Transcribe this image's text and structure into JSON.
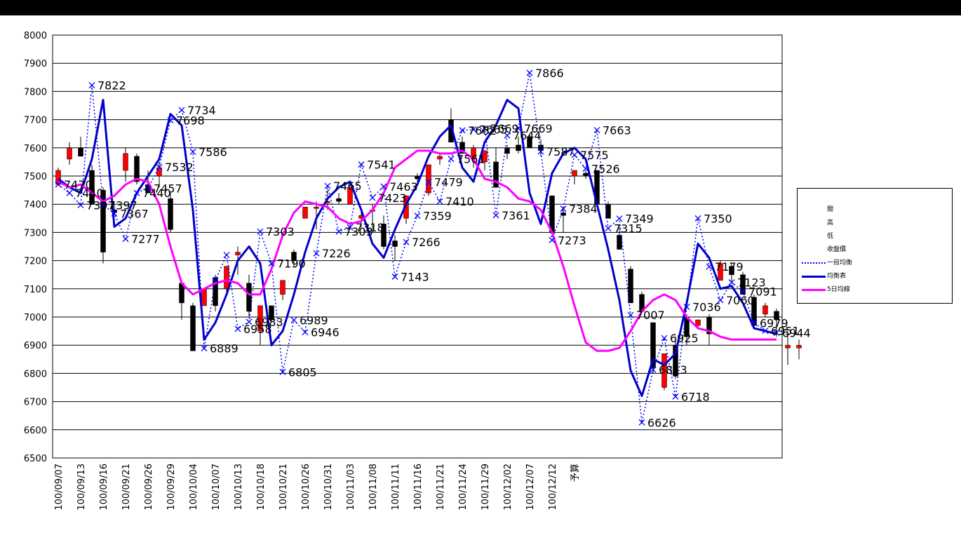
{
  "chart_data": {
    "type": "line",
    "ylim": [
      6500,
      8000
    ],
    "yticks": [
      6500,
      6600,
      6700,
      6800,
      6900,
      7000,
      7100,
      7200,
      7300,
      7400,
      7500,
      7600,
      7700,
      7800,
      7900,
      8000
    ],
    "x_labels": [
      "100/09/07",
      "100/09/13",
      "100/09/16",
      "100/09/21",
      "100/09/26",
      "100/09/29",
      "100/10/04",
      "100/10/07",
      "100/10/13",
      "100/10/18",
      "100/10/21",
      "100/10/26",
      "100/10/31",
      "100/11/03",
      "100/11/08",
      "100/11/11",
      "100/11/16",
      "100/11/21",
      "100/11/24",
      "100/11/29",
      "100/12/02",
      "100/12/07",
      "100/12/12",
      "予算"
    ],
    "x_label_index": [
      0,
      2,
      4,
      6,
      8,
      10,
      12,
      14,
      16,
      18,
      20,
      22,
      24,
      26,
      28,
      30,
      32,
      34,
      36,
      38,
      40,
      42,
      44,
      46
    ],
    "candles": [
      [
        7470,
        7530,
        7480,
        7520
      ],
      [
        7560,
        7620,
        7540,
        7600
      ],
      [
        7600,
        7640,
        7570,
        7570
      ],
      [
        7520,
        7540,
        7400,
        7400
      ],
      [
        7450,
        7460,
        7190,
        7230
      ],
      [
        7380,
        7400,
        7360,
        7370
      ],
      [
        7520,
        7600,
        7480,
        7580
      ],
      [
        7570,
        7580,
        7470,
        7480
      ],
      [
        7470,
        7520,
        7440,
        7440
      ],
      [
        7500,
        7550,
        7460,
        7530
      ],
      [
        7420,
        7440,
        7300,
        7310
      ],
      [
        7120,
        7120,
        6990,
        7050
      ],
      [
        7040,
        7050,
        6880,
        6880
      ],
      [
        7040,
        7100,
        7040,
        7100
      ],
      [
        7140,
        7150,
        7020,
        7040
      ],
      [
        7100,
        7180,
        7080,
        7180
      ],
      [
        7220,
        7250,
        7150,
        7230
      ],
      [
        7120,
        7150,
        7000,
        7020
      ],
      [
        6950,
        7040,
        6900,
        7040
      ],
      [
        7040,
        7040,
        6980,
        6990
      ],
      [
        7080,
        7130,
        7060,
        7130
      ],
      [
        7230,
        7240,
        7180,
        7200
      ],
      [
        7350,
        7390,
        7350,
        7390
      ],
      [
        7390,
        7410,
        7310,
        7390
      ],
      [
        7410,
        7450,
        7380,
        7410
      ],
      [
        7420,
        7440,
        7400,
        7410
      ],
      [
        7400,
        7460,
        7400,
        7460
      ],
      [
        7350,
        7370,
        7320,
        7360
      ],
      [
        7380,
        7400,
        7300,
        7380
      ],
      [
        7330,
        7360,
        7240,
        7250
      ],
      [
        7270,
        7290,
        7200,
        7250
      ],
      [
        7350,
        7430,
        7330,
        7430
      ],
      [
        7500,
        7510,
        7480,
        7490
      ],
      [
        7440,
        7540,
        7430,
        7540
      ],
      [
        7560,
        7580,
        7540,
        7570
      ],
      [
        7700,
        7740,
        7620,
        7620
      ],
      [
        7620,
        7640,
        7580,
        7580
      ],
      [
        7560,
        7610,
        7530,
        7600
      ],
      [
        7550,
        7590,
        7520,
        7590
      ],
      [
        7550,
        7600,
        7460,
        7460
      ],
      [
        7600,
        7610,
        7560,
        7580
      ],
      [
        7610,
        7640,
        7580,
        7590
      ],
      [
        7640,
        7650,
        7600,
        7600
      ],
      [
        7610,
        7630,
        7570,
        7590
      ],
      [
        7430,
        7430,
        7290,
        7300
      ],
      [
        7370,
        7380,
        7300,
        7360
      ],
      [
        7500,
        7520,
        7470,
        7520
      ],
      [
        7510,
        7520,
        7490,
        7500
      ],
      [
        7520,
        7520,
        7400,
        7400
      ],
      [
        7400,
        7410,
        7350,
        7350
      ],
      [
        7290,
        7320,
        7240,
        7240
      ],
      [
        7170,
        7180,
        7050,
        7050
      ],
      [
        7080,
        7090,
        7020,
        7020
      ],
      [
        6980,
        6980,
        6800,
        6820
      ],
      [
        6750,
        6870,
        6740,
        6870
      ],
      [
        6900,
        6930,
        6780,
        6790
      ],
      [
        7000,
        7010,
        6900,
        6930
      ],
      [
        6970,
        6990,
        6960,
        6990
      ],
      [
        7000,
        7010,
        6900,
        6940
      ],
      [
        7130,
        7200,
        7130,
        7190
      ],
      [
        7180,
        7190,
        7120,
        7150
      ],
      [
        7150,
        7160,
        7080,
        7080
      ],
      [
        7070,
        7080,
        6960,
        6970
      ],
      [
        7010,
        7050,
        7000,
        7040
      ],
      [
        7020,
        7030,
        6930,
        6990
      ],
      [
        6890,
        6950,
        6830,
        6900
      ],
      [
        6890,
        6920,
        6850,
        6900
      ]
    ],
    "series": [
      {
        "name": "一目均衡",
        "values": [
          7470,
          7440,
          7397,
          7822,
          7397,
          7367,
          7277,
          7440,
          7457,
          7532,
          7698,
          7734,
          7586,
          6889,
          7130,
          7220,
          6958,
          6983,
          7303,
          7190,
          6805,
          6989,
          6946,
          7226,
          7465,
          7303,
          7318,
          7541,
          7423,
          7463,
          7143,
          7266,
          7359,
          7479,
          7410,
          7561,
          7662,
          7665,
          7669,
          7361,
          7644,
          7669,
          7866,
          7587,
          7273,
          7384,
          7575,
          7526,
          7663,
          7315,
          7349,
          7007,
          6626,
          6813,
          6925,
          6718,
          7036,
          7350,
          7179,
          7060,
          7123,
          7091,
          6979,
          6951,
          6944
        ]
      },
      {
        "name": "均衡表",
        "values": [
          7490,
          7460,
          7440,
          7560,
          7770,
          7320,
          7350,
          7440,
          7500,
          7560,
          7720,
          7680,
          7380,
          6920,
          6980,
          7080,
          7200,
          7250,
          7190,
          6900,
          6950,
          7080,
          7230,
          7350,
          7420,
          7460,
          7480,
          7380,
          7260,
          7210,
          7310,
          7400,
          7470,
          7570,
          7640,
          7680,
          7530,
          7480,
          7620,
          7680,
          7770,
          7740,
          7440,
          7330,
          7510,
          7580,
          7600,
          7560,
          7400,
          7240,
          7060,
          6810,
          6720,
          6850,
          6830,
          6870,
          7050,
          7260,
          7210,
          7100,
          7110,
          7050,
          6960,
          6950,
          6940
        ]
      },
      {
        "name": "5日均線",
        "values": [
          7480,
          7460,
          7470,
          7440,
          7410,
          7430,
          7470,
          7490,
          7480,
          7400,
          7250,
          7120,
          7080,
          7100,
          7120,
          7130,
          7120,
          7080,
          7080,
          7170,
          7290,
          7370,
          7410,
          7400,
          7390,
          7350,
          7330,
          7340,
          7380,
          7440,
          7530,
          7560,
          7590,
          7590,
          7580,
          7580,
          7590,
          7560,
          7490,
          7480,
          7460,
          7420,
          7410,
          7380,
          7300,
          7180,
          7040,
          6910,
          6880,
          6880,
          6890,
          6950,
          7020,
          7060,
          7080,
          7060,
          7000,
          6960,
          6950,
          6930,
          6920,
          6920,
          6920,
          6920,
          6920
        ]
      }
    ],
    "point_labels": [
      {
        "i": 0,
        "text": "7470"
      },
      {
        "i": 1,
        "text": "7440"
      },
      {
        "i": 2,
        "text": "7397"
      },
      {
        "i": 3,
        "text": "7822"
      },
      {
        "i": 4,
        "text": "7397"
      },
      {
        "i": 5,
        "text": "7367"
      },
      {
        "i": 6,
        "text": "7277"
      },
      {
        "i": 7,
        "text": "7440"
      },
      {
        "i": 8,
        "text": "7457"
      },
      {
        "i": 9,
        "text": "7532"
      },
      {
        "i": 10,
        "text": "7698"
      },
      {
        "i": 11,
        "text": "7734"
      },
      {
        "i": 12,
        "text": "7586"
      },
      {
        "i": 13,
        "text": "6889"
      },
      {
        "i": 16,
        "text": "6958"
      },
      {
        "i": 17,
        "text": "6983"
      },
      {
        "i": 18,
        "text": "7303"
      },
      {
        "i": 19,
        "text": "7190"
      },
      {
        "i": 20,
        "text": "6805"
      },
      {
        "i": 21,
        "text": "6989"
      },
      {
        "i": 22,
        "text": "6946"
      },
      {
        "i": 23,
        "text": "7226"
      },
      {
        "i": 24,
        "text": "7465"
      },
      {
        "i": 25,
        "text": "7303"
      },
      {
        "i": 26,
        "text": "7318"
      },
      {
        "i": 27,
        "text": "7541"
      },
      {
        "i": 28,
        "text": "7423"
      },
      {
        "i": 29,
        "text": "7463"
      },
      {
        "i": 30,
        "text": "7143"
      },
      {
        "i": 31,
        "text": "7266"
      },
      {
        "i": 32,
        "text": "7359"
      },
      {
        "i": 33,
        "text": "7479"
      },
      {
        "i": 34,
        "text": "7410"
      },
      {
        "i": 35,
        "text": "7561"
      },
      {
        "i": 36,
        "text": "7662"
      },
      {
        "i": 37,
        "text": "7665"
      },
      {
        "i": 38,
        "text": "7669"
      },
      {
        "i": 39,
        "text": "7361"
      },
      {
        "i": 40,
        "text": "7644"
      },
      {
        "i": 41,
        "text": "7669"
      },
      {
        "i": 42,
        "text": "7866"
      },
      {
        "i": 43,
        "text": "7587"
      },
      {
        "i": 44,
        "text": "7273"
      },
      {
        "i": 45,
        "text": "7384"
      },
      {
        "i": 46,
        "text": "7575"
      },
      {
        "i": 47,
        "text": "7526"
      },
      {
        "i": 48,
        "text": "7663"
      },
      {
        "i": 49,
        "text": "7315"
      },
      {
        "i": 50,
        "text": "7349"
      },
      {
        "i": 51,
        "text": "7007"
      },
      {
        "i": 52,
        "text": "6626"
      },
      {
        "i": 53,
        "text": "6813"
      },
      {
        "i": 54,
        "text": "6925"
      },
      {
        "i": 55,
        "text": "6718"
      },
      {
        "i": 56,
        "text": "7036"
      },
      {
        "i": 57,
        "text": "7350"
      },
      {
        "i": 58,
        "text": "7179"
      },
      {
        "i": 59,
        "text": "7060"
      },
      {
        "i": 60,
        "text": "7123"
      },
      {
        "i": 61,
        "text": "7091"
      },
      {
        "i": 62,
        "text": "6979"
      },
      {
        "i": 63,
        "text": "6951"
      },
      {
        "i": 64,
        "text": "6944"
      }
    ],
    "grid": true,
    "legend_position": "right",
    "colors": {
      "up_candle": "#ff0000",
      "down_candle": "#000000",
      "dotted": "#0000ff",
      "solid": "#0000cc",
      "ma5": "#ff00ff",
      "grid": "#000000"
    }
  },
  "legend": {
    "items": [
      {
        "label": "開",
        "kind": "none"
      },
      {
        "label": "高",
        "kind": "none"
      },
      {
        "label": "低",
        "kind": "none"
      },
      {
        "label": "收盤價",
        "kind": "none"
      },
      {
        "label": "一目均衡",
        "kind": "dotted"
      },
      {
        "label": "均衡表",
        "kind": "solid"
      },
      {
        "label": "5日均線",
        "kind": "ma5"
      }
    ]
  }
}
